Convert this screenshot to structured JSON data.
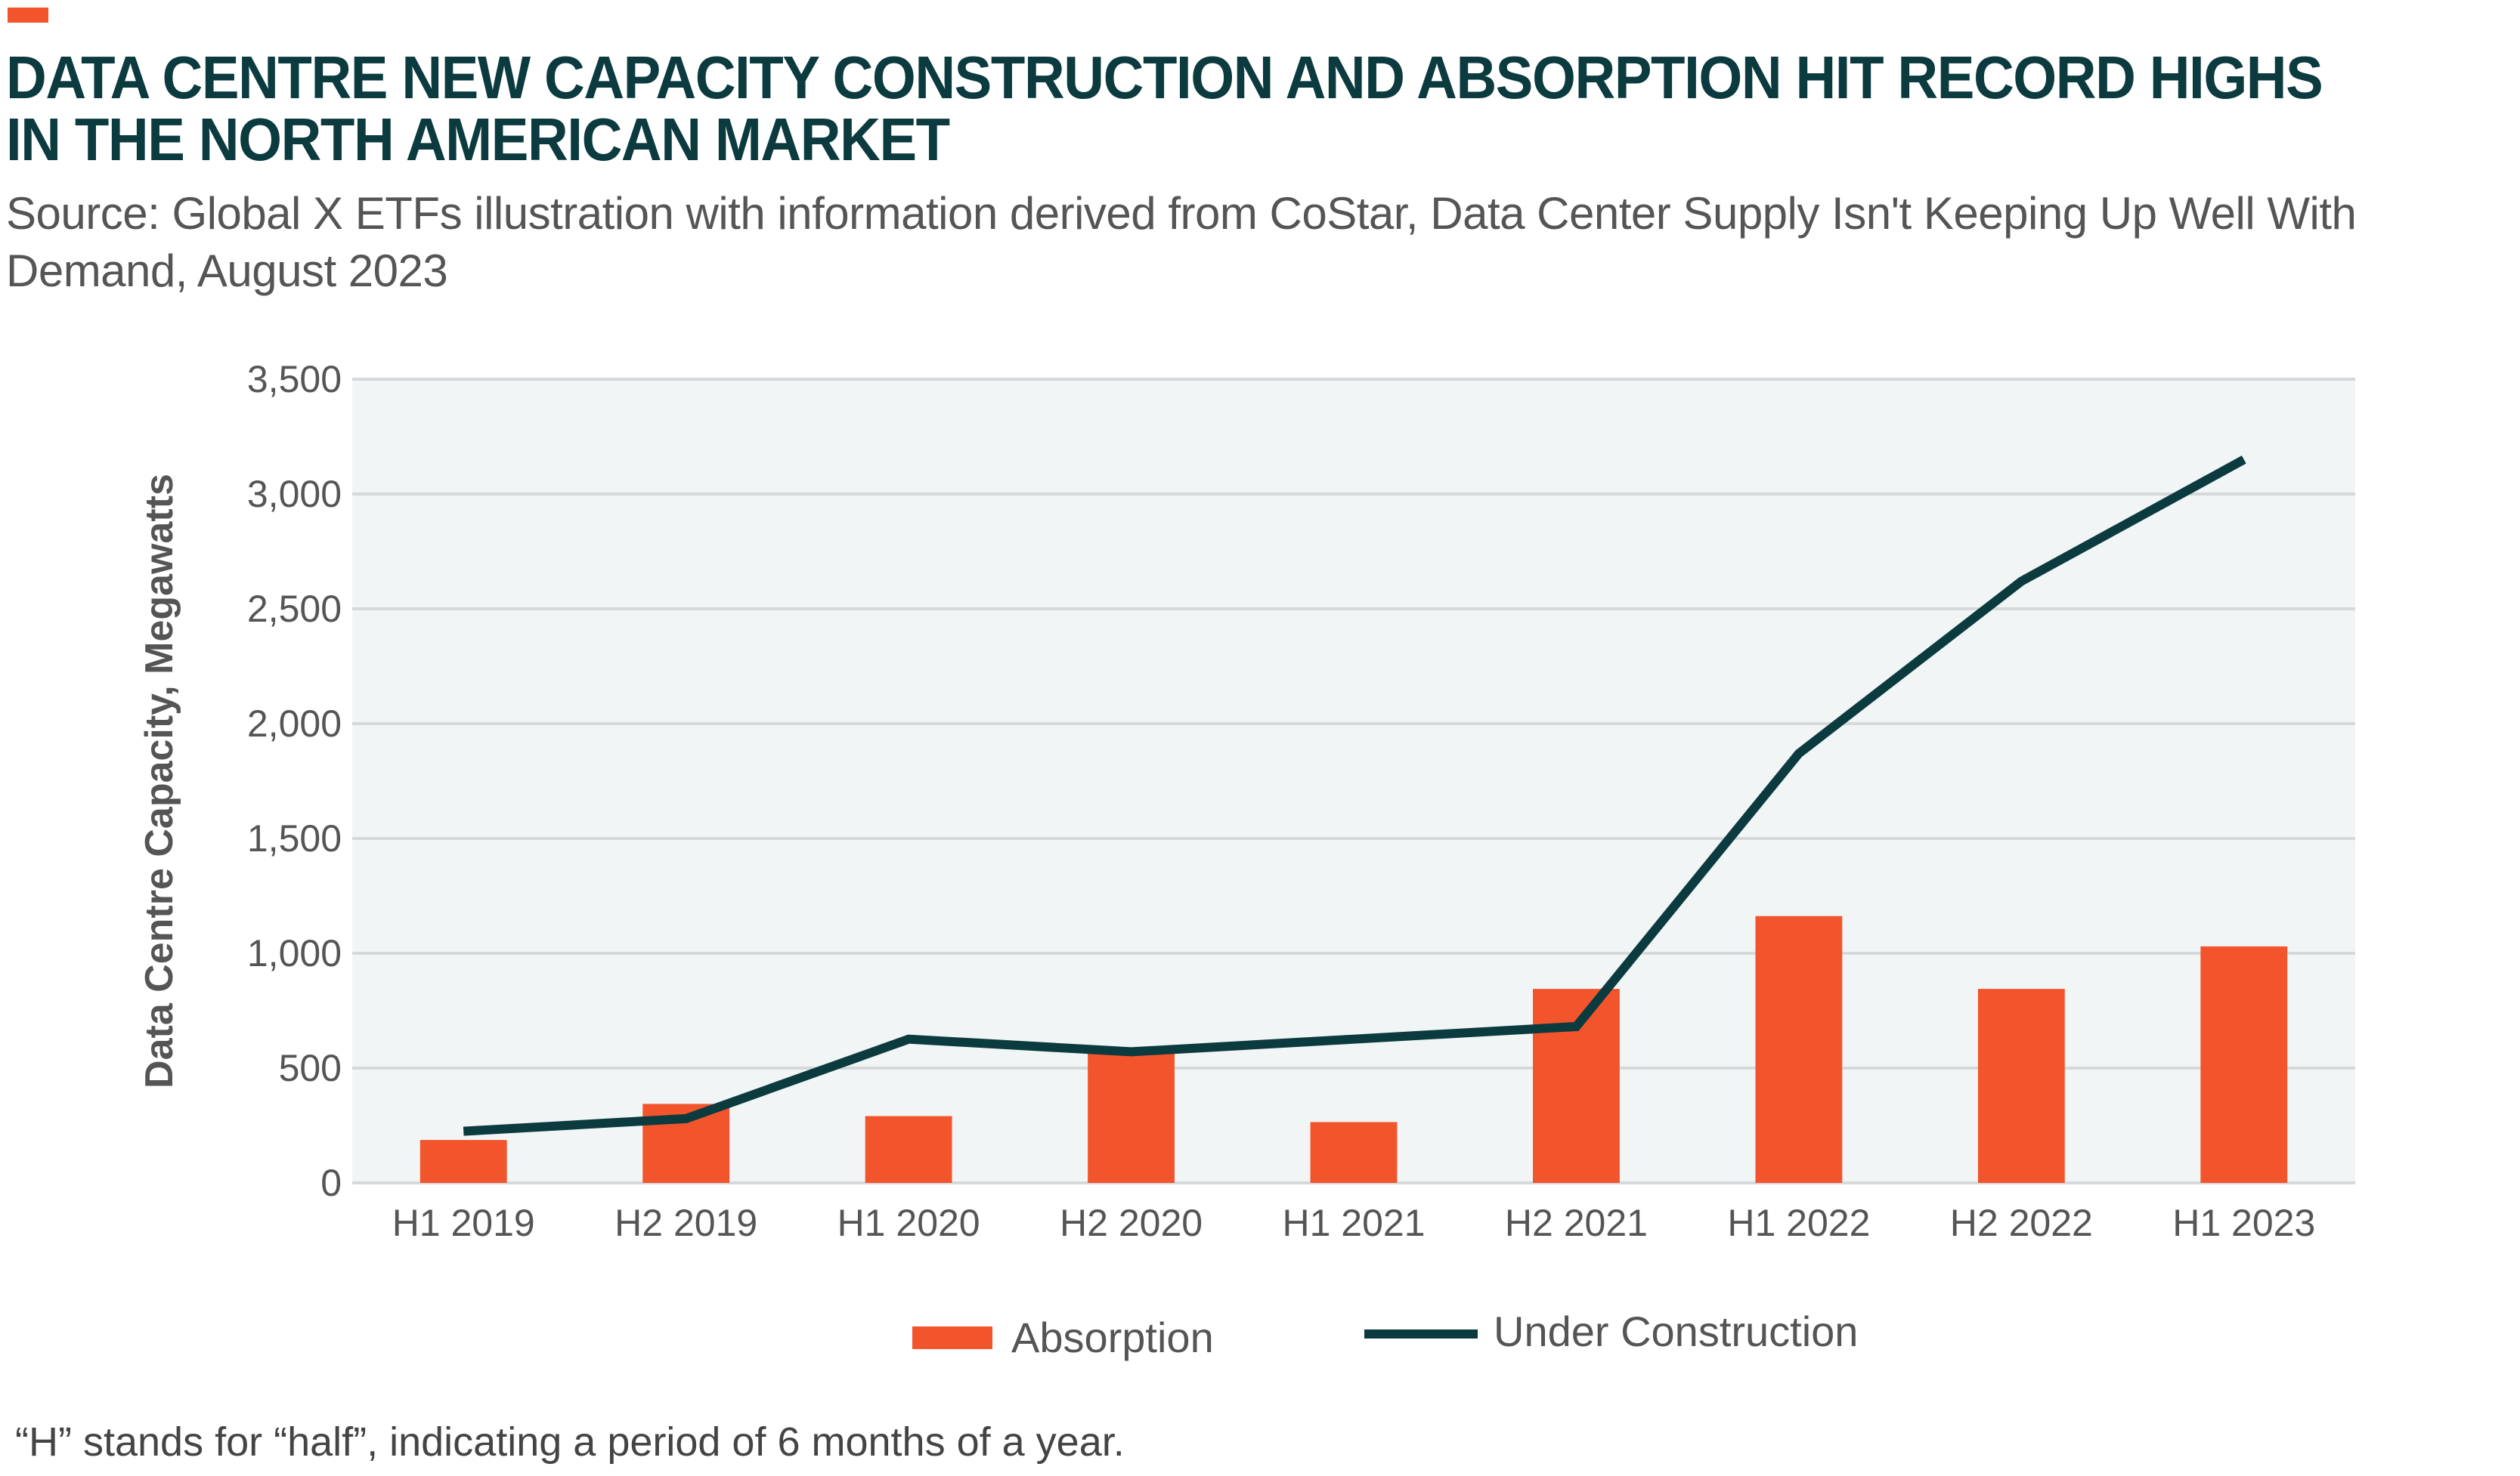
{
  "header": {
    "title": "DATA CENTRE NEW CAPACITY CONSTRUCTION AND ABSORPTION HIT RECORD HIGHS IN THE NORTH AMERICAN MARKET",
    "subtitle": "Source: Global X ETFs illustration with information derived from CoStar, Data Center Supply Isn't Keeping Up Well With Demand, August 2023"
  },
  "footnote": "“H” stands for “half”, indicating a period of 6 months of a year.",
  "colors": {
    "accent": "#f2552c",
    "bar": "#f2552c",
    "line": "#0b3a3f",
    "plot_bg": "#f1f5f6",
    "grid": "#d6d9da"
  },
  "chart_data": {
    "type": "bar",
    "title": "",
    "xlabel": "",
    "ylabel": "Data Centre Capacity, Megawatts",
    "ylim": [
      0,
      3500
    ],
    "yticks": [
      0,
      500,
      1000,
      1500,
      2000,
      2500,
      3000,
      3500
    ],
    "ytick_labels": [
      "0",
      "500",
      "1,000",
      "1,500",
      "2,000",
      "2,500",
      "3,000",
      "3,500"
    ],
    "grid": true,
    "legend_placement": "bottom",
    "categories": [
      "H1 2019",
      "H2 2019",
      "H1 2020",
      "H2 2020",
      "H1 2021",
      "H2 2021",
      "H1 2022",
      "H2 2022",
      "H1 2023"
    ],
    "series": [
      {
        "name": "Absorption",
        "type": "bar",
        "values": [
          187,
          344,
          291,
          571,
          265,
          845,
          1162,
          845,
          1030
        ]
      },
      {
        "name": "Under Construction",
        "type": "line",
        "values": [
          225,
          280,
          626,
          571,
          626,
          681,
          1870,
          2620,
          3150
        ]
      }
    ]
  }
}
